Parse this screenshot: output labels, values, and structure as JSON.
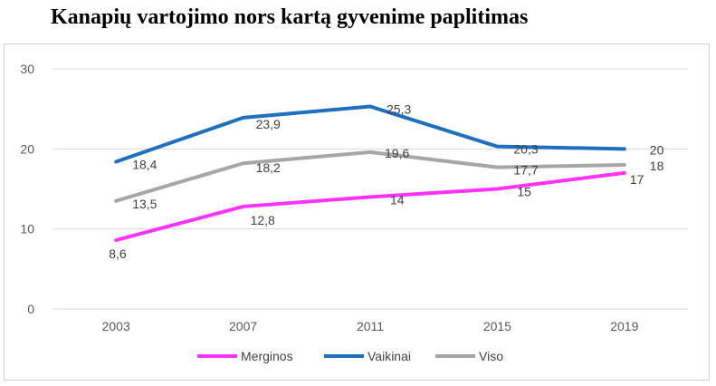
{
  "chart_data": {
    "type": "line",
    "title": "Kanapių vartojimo nors kartą gyvenime paplitimas",
    "categories": [
      "2003",
      "2007",
      "2011",
      "2015",
      "2019"
    ],
    "ylim": [
      0,
      30
    ],
    "yticks": [
      0,
      10,
      20,
      30
    ],
    "grid": true,
    "legend": "bottom",
    "series": [
      {
        "name": "Merginos",
        "color": "#ff33ff",
        "values": [
          8.6,
          12.8,
          14,
          15,
          17
        ],
        "labels": [
          "8,6",
          "12,8",
          "14",
          "15",
          "17"
        ]
      },
      {
        "name": "Vaikinai",
        "color": "#1f6fbf",
        "values": [
          18.4,
          23.9,
          25.3,
          20.3,
          20
        ],
        "labels": [
          "18,4",
          "23,9",
          "25,3",
          "20,3",
          "20"
        ]
      },
      {
        "name": "Viso",
        "color": "#a6a6a6",
        "values": [
          13.5,
          18.2,
          19.6,
          17.7,
          18
        ],
        "labels": [
          "13,5",
          "18,2",
          "19,6",
          "17,7",
          "18"
        ]
      }
    ]
  }
}
